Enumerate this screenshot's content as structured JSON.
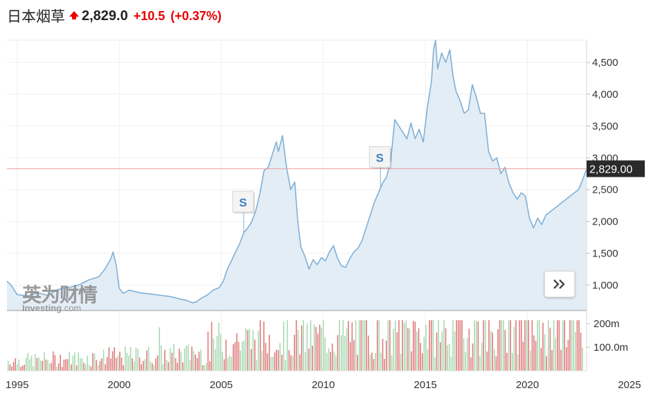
{
  "header": {
    "title": "日本烟草",
    "direction": "up",
    "price": "2,829.0",
    "change": "+10.5",
    "change_pct": "(+0.37%)",
    "up_color": "#e60000"
  },
  "watermark": {
    "cn": "英为财情",
    "en_main": "Investing",
    "en_suffix": ".com"
  },
  "icons": {
    "expand": "double-chevron-right-icon",
    "trend": "up-arrow-icon"
  },
  "chart_data": {
    "type": "line",
    "x_range": [
      1994.5,
      2022.9
    ],
    "price_axis": {
      "ylim": [
        600,
        4850
      ],
      "ticks": [
        1000,
        1500,
        2000,
        2500,
        3000,
        3500,
        4000,
        4500
      ],
      "tick_labels": [
        "1,000",
        "1,500",
        "2,000",
        "2,500",
        "3,000",
        "3,500",
        "4,000",
        "4,500"
      ]
    },
    "volume_axis": {
      "ylim_millions": [
        0,
        250
      ],
      "ticks": [
        100,
        200
      ],
      "tick_labels": [
        "100.0m",
        "200m"
      ]
    },
    "x_ticks": [
      1995,
      2000,
      2005,
      2010,
      2015,
      2020,
      2025
    ],
    "x_tick_labels": [
      "1995",
      "2000",
      "2005",
      "2010",
      "2015",
      "2020",
      "2025"
    ],
    "current_price": {
      "value": 2829,
      "label": "2,829.00"
    },
    "split_markers": [
      {
        "x": 2006.1,
        "label": "S"
      },
      {
        "x": 2012.8,
        "label": "S"
      }
    ],
    "line_color": "#7fb0d6",
    "fill_color": "#e3edf6",
    "volume_up_color": "#e07a7a",
    "volume_down_color": "#a9d8b1",
    "current_line_color": "#f0a0a0",
    "series": [
      {
        "values": [
          [
            1994.5,
            1060
          ],
          [
            1994.7,
            1000
          ],
          [
            1995.0,
            850
          ],
          [
            1995.5,
            830
          ],
          [
            1996.0,
            880
          ],
          [
            1996.5,
            840
          ],
          [
            1997.0,
            930
          ],
          [
            1997.5,
            960
          ],
          [
            1998.0,
            1000
          ],
          [
            1998.5,
            1080
          ],
          [
            1999.0,
            1130
          ],
          [
            1999.3,
            1250
          ],
          [
            1999.6,
            1420
          ],
          [
            1999.7,
            1520
          ],
          [
            1999.85,
            1320
          ],
          [
            2000.0,
            950
          ],
          [
            2000.2,
            870
          ],
          [
            2000.5,
            920
          ],
          [
            2001.0,
            880
          ],
          [
            2001.5,
            860
          ],
          [
            2002.0,
            840
          ],
          [
            2002.5,
            820
          ],
          [
            2003.0,
            780
          ],
          [
            2003.3,
            760
          ],
          [
            2003.6,
            720
          ],
          [
            2003.8,
            740
          ],
          [
            2004.0,
            790
          ],
          [
            2004.3,
            840
          ],
          [
            2004.6,
            920
          ],
          [
            2004.9,
            960
          ],
          [
            2005.1,
            1060
          ],
          [
            2005.3,
            1250
          ],
          [
            2005.6,
            1450
          ],
          [
            2005.9,
            1650
          ],
          [
            2006.1,
            1820
          ],
          [
            2006.3,
            1900
          ],
          [
            2006.5,
            2000
          ],
          [
            2006.7,
            2180
          ],
          [
            2006.9,
            2450
          ],
          [
            2007.1,
            2800
          ],
          [
            2007.3,
            2850
          ],
          [
            2007.5,
            3050
          ],
          [
            2007.7,
            3250
          ],
          [
            2007.8,
            3100
          ],
          [
            2008.0,
            3350
          ],
          [
            2008.2,
            2850
          ],
          [
            2008.4,
            2500
          ],
          [
            2008.6,
            2620
          ],
          [
            2008.75,
            2000
          ],
          [
            2008.9,
            1600
          ],
          [
            2009.1,
            1450
          ],
          [
            2009.3,
            1250
          ],
          [
            2009.5,
            1400
          ],
          [
            2009.7,
            1320
          ],
          [
            2009.9,
            1430
          ],
          [
            2010.1,
            1380
          ],
          [
            2010.3,
            1520
          ],
          [
            2010.5,
            1620
          ],
          [
            2010.7,
            1420
          ],
          [
            2010.9,
            1300
          ],
          [
            2011.1,
            1280
          ],
          [
            2011.3,
            1420
          ],
          [
            2011.5,
            1520
          ],
          [
            2011.7,
            1580
          ],
          [
            2011.9,
            1700
          ],
          [
            2012.1,
            1900
          ],
          [
            2012.3,
            2100
          ],
          [
            2012.5,
            2300
          ],
          [
            2012.7,
            2450
          ],
          [
            2012.9,
            2600
          ],
          [
            2013.1,
            2700
          ],
          [
            2013.3,
            2950
          ],
          [
            2013.5,
            3600
          ],
          [
            2013.7,
            3500
          ],
          [
            2013.9,
            3400
          ],
          [
            2014.1,
            3300
          ],
          [
            2014.3,
            3550
          ],
          [
            2014.5,
            3300
          ],
          [
            2014.7,
            3450
          ],
          [
            2014.9,
            3250
          ],
          [
            2015.1,
            3800
          ],
          [
            2015.3,
            4200
          ],
          [
            2015.4,
            4700
          ],
          [
            2015.5,
            4850
          ],
          [
            2015.6,
            4400
          ],
          [
            2015.8,
            4650
          ],
          [
            2016.0,
            4500
          ],
          [
            2016.2,
            4700
          ],
          [
            2016.35,
            4300
          ],
          [
            2016.5,
            4050
          ],
          [
            2016.7,
            3900
          ],
          [
            2016.9,
            3700
          ],
          [
            2017.1,
            3750
          ],
          [
            2017.3,
            4150
          ],
          [
            2017.5,
            3950
          ],
          [
            2017.7,
            3700
          ],
          [
            2017.9,
            3700
          ],
          [
            2018.1,
            3100
          ],
          [
            2018.3,
            2950
          ],
          [
            2018.5,
            3000
          ],
          [
            2018.7,
            2750
          ],
          [
            2018.9,
            2850
          ],
          [
            2019.1,
            2600
          ],
          [
            2019.3,
            2450
          ],
          [
            2019.5,
            2350
          ],
          [
            2019.7,
            2450
          ],
          [
            2019.9,
            2400
          ],
          [
            2020.1,
            2050
          ],
          [
            2020.3,
            1900
          ],
          [
            2020.5,
            2050
          ],
          [
            2020.7,
            1950
          ],
          [
            2020.9,
            2100
          ],
          [
            2021.1,
            2150
          ],
          [
            2021.3,
            2200
          ],
          [
            2021.5,
            2250
          ],
          [
            2021.7,
            2300
          ],
          [
            2021.9,
            2350
          ],
          [
            2022.1,
            2400
          ],
          [
            2022.3,
            2450
          ],
          [
            2022.5,
            2500
          ],
          [
            2022.7,
            2650
          ],
          [
            2022.9,
            2829
          ]
        ]
      }
    ]
  }
}
